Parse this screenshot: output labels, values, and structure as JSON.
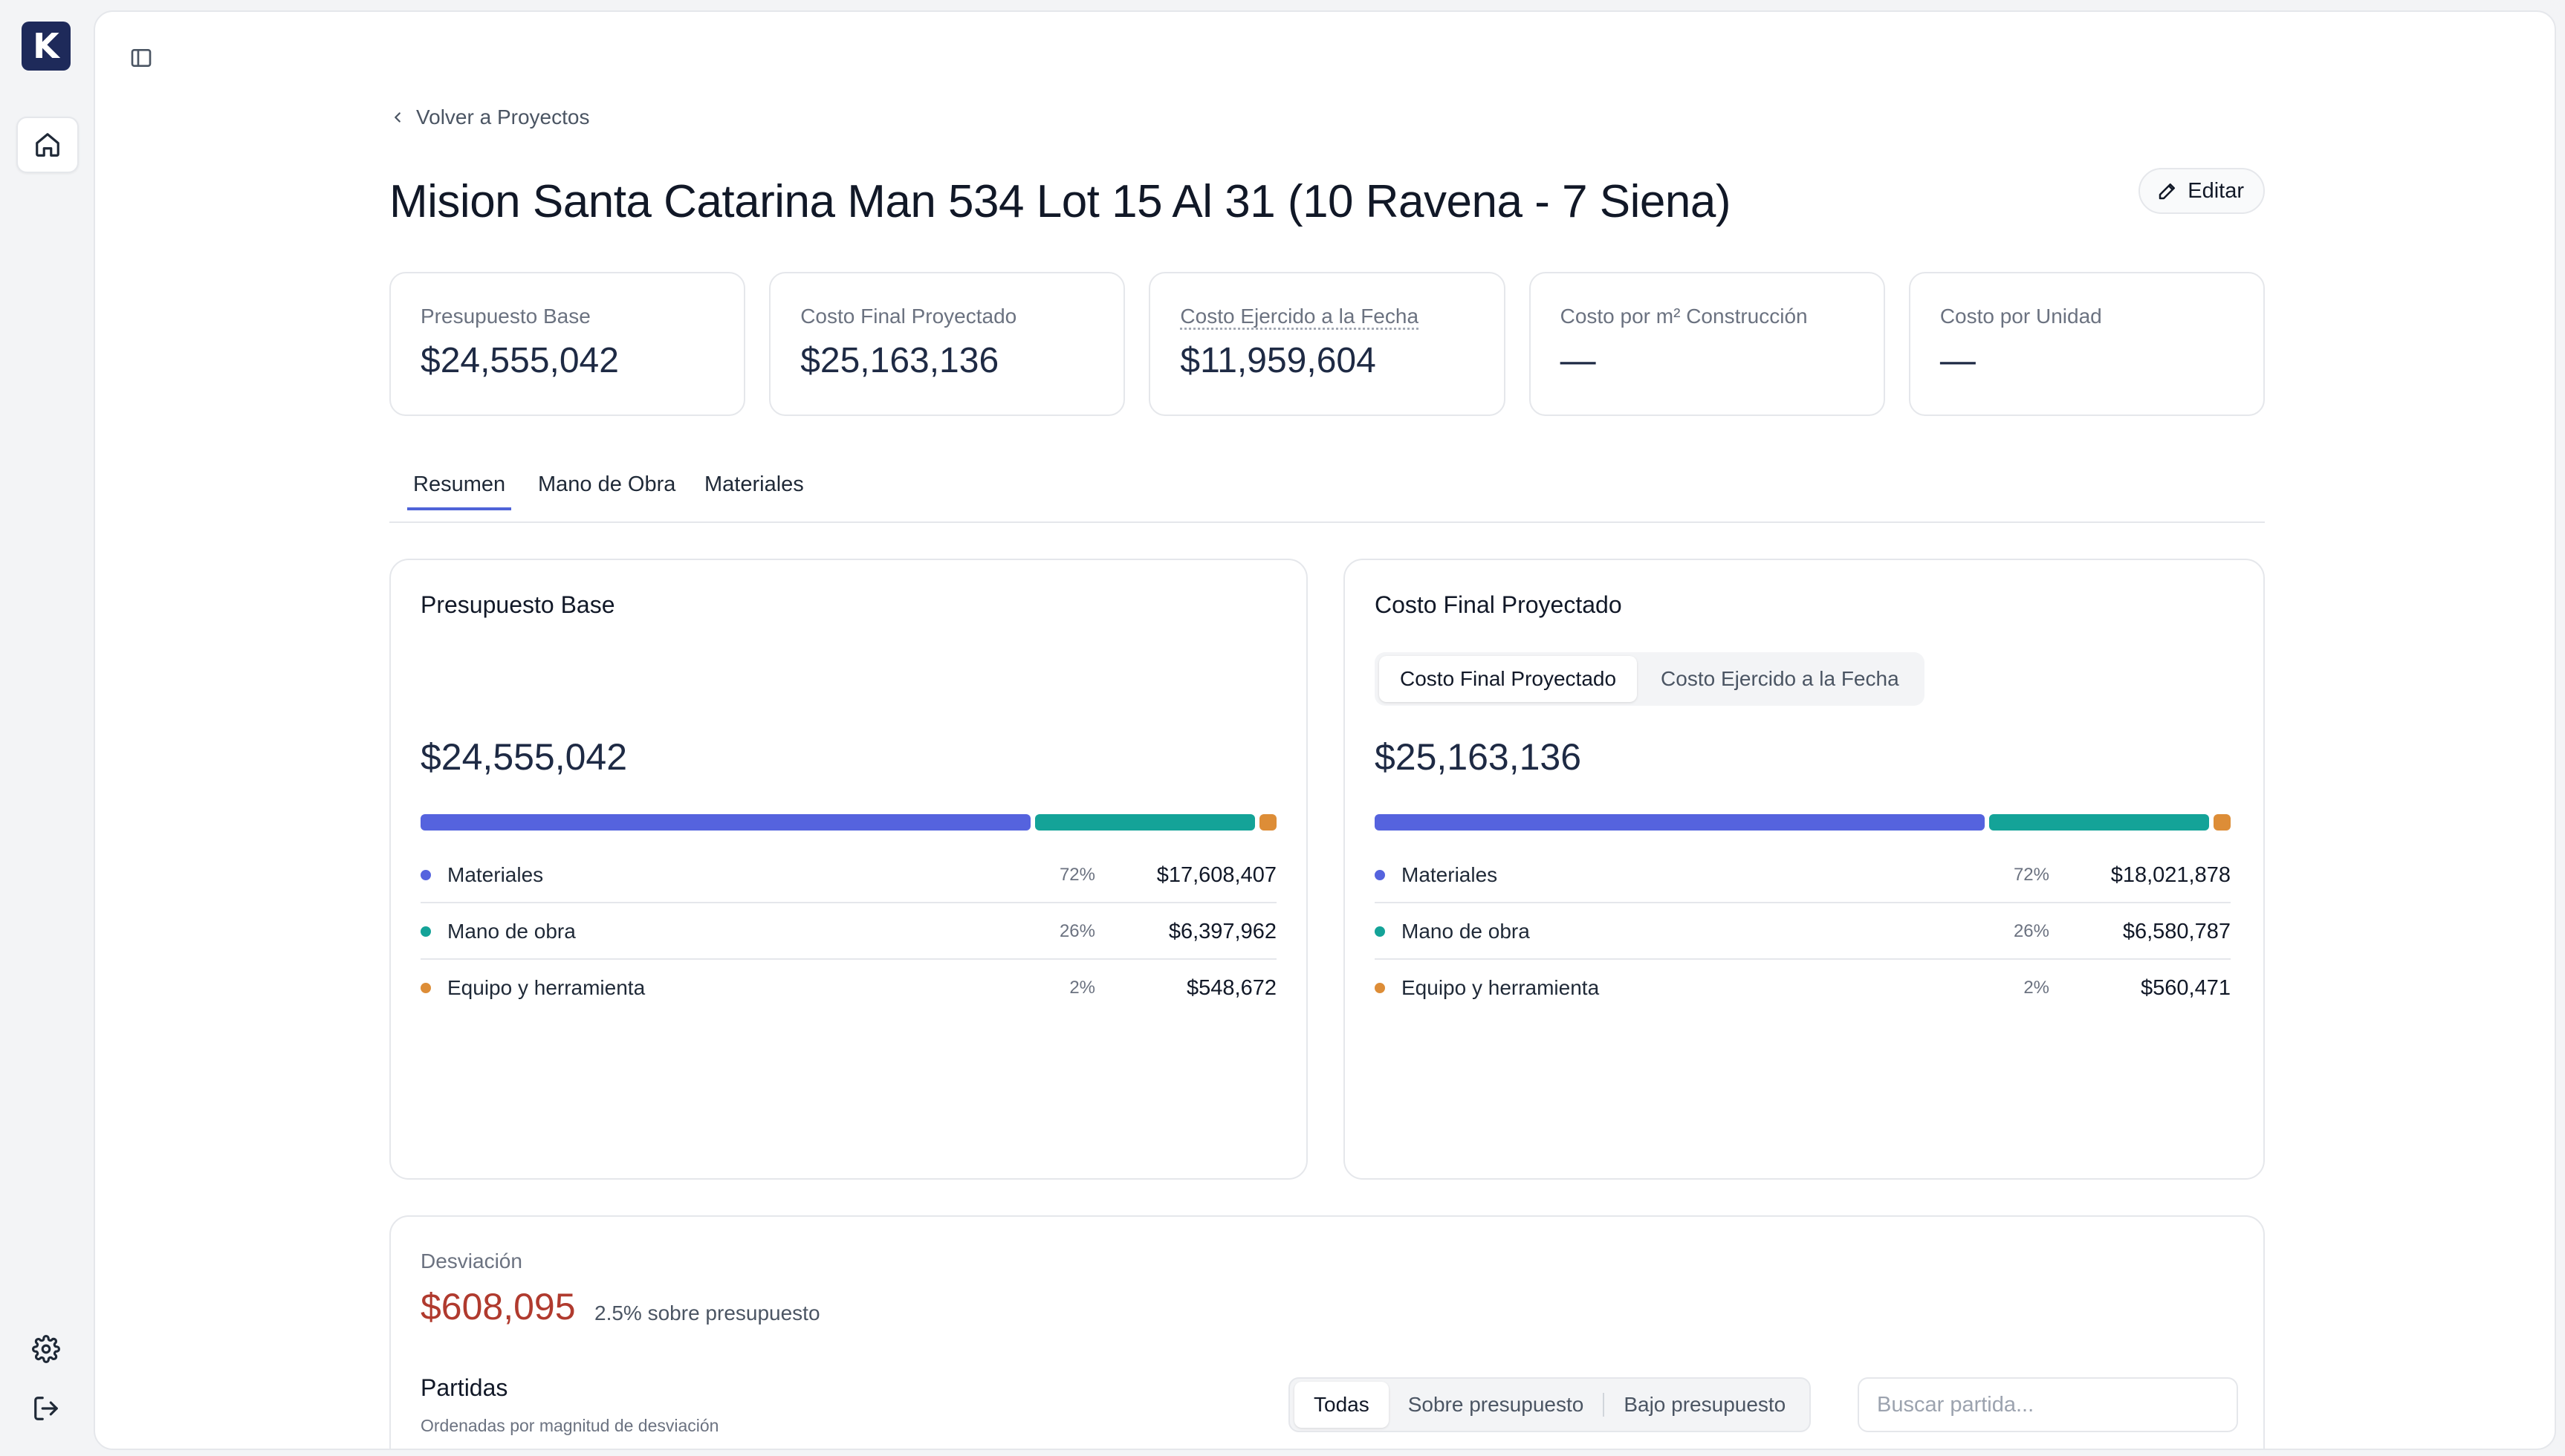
{
  "nav": {
    "logo_letter": "K",
    "items": [
      {
        "icon": "home-icon"
      },
      {
        "icon": "gear-icon"
      },
      {
        "icon": "logout-icon"
      }
    ]
  },
  "header": {
    "back_label": "Volver a Proyectos",
    "title": "Mision Santa Catarina Man 534 Lot 15 Al 31 (10 Ravena - 7 Siena)",
    "edit_label": "Editar"
  },
  "kpis": [
    {
      "label": "Presupuesto Base",
      "value": "$24,555,042"
    },
    {
      "label": "Costo Final Proyectado",
      "value": "$25,163,136"
    },
    {
      "label": "Costo Ejercido a la Fecha",
      "value": "$11,959,604"
    },
    {
      "label": "Costo por m² Construcción",
      "value": "—"
    },
    {
      "label": "Costo por Unidad",
      "value": "—"
    }
  ],
  "tabs": [
    "Resumen",
    "Mano de Obra",
    "Materiales"
  ],
  "colors": {
    "materiales": "#5563de",
    "mano_de_obra": "#14a398",
    "equipo": "#dd8d37",
    "deviation": "#b03a2e",
    "accent": "#4f63d8"
  },
  "budget_card": {
    "title": "Presupuesto Base",
    "total": "$24,555,042",
    "rows": [
      {
        "label": "Materiales",
        "pct": "72%",
        "value": "$17,608,407",
        "share": 0.72
      },
      {
        "label": "Mano de obra",
        "pct": "26%",
        "value": "$6,397,962",
        "share": 0.26
      },
      {
        "label": "Equipo y herramienta",
        "pct": "2%",
        "value": "$548,672",
        "share": 0.02
      }
    ]
  },
  "projected_card": {
    "title": "Costo Final Proyectado",
    "toggle": [
      "Costo Final Proyectado",
      "Costo Ejercido a la Fecha"
    ],
    "total": "$25,163,136",
    "rows": [
      {
        "label": "Materiales",
        "pct": "72%",
        "value": "$18,021,878",
        "share": 0.72
      },
      {
        "label": "Mano de obra",
        "pct": "26%",
        "value": "$6,580,787",
        "share": 0.26
      },
      {
        "label": "Equipo y herramienta",
        "pct": "2%",
        "value": "$560,471",
        "share": 0.02
      }
    ]
  },
  "deviation": {
    "label": "Desviación",
    "value": "$608,095",
    "note": "2.5% sobre presupuesto",
    "partidas_title": "Partidas",
    "partidas_subtitle": "Ordenadas por magnitud de desviación",
    "filters": [
      "Todas",
      "Sobre presupuesto",
      "Bajo presupuesto"
    ],
    "search_placeholder": "Buscar partida..."
  }
}
